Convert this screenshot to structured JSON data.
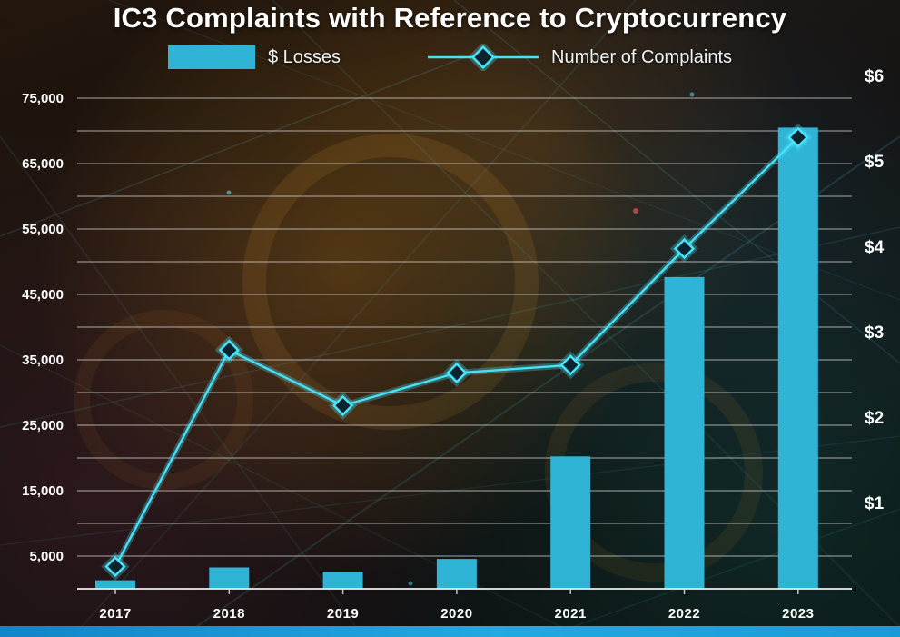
{
  "title": "IC3 Complaints with Reference to Cryptocurrency",
  "legend": {
    "losses_label": "$ Losses",
    "complaints_label": "Number of Complaints"
  },
  "chart_data": {
    "type": "combo-bar-line",
    "title": "IC3 Complaints with Reference to Cryptocurrency",
    "categories": [
      "2017",
      "2018",
      "2019",
      "2020",
      "2021",
      "2022",
      "2023"
    ],
    "series": [
      {
        "name": "$ Losses",
        "type": "bar",
        "axis": "right",
        "unit": "USD billions",
        "values": [
          0.1,
          0.25,
          0.2,
          0.35,
          1.55,
          3.65,
          5.4
        ]
      },
      {
        "name": "Number of Complaints",
        "type": "line",
        "axis": "left",
        "values": [
          3400,
          36500,
          28000,
          33000,
          34200,
          52000,
          69000
        ]
      }
    ],
    "left_axis": {
      "tick_labels": [
        "75,000",
        "65,000",
        "55,000",
        "45,000",
        "35,000",
        "25,000",
        "15,000",
        "5,000"
      ],
      "tick_values": [
        75000,
        65000,
        55000,
        45000,
        35000,
        25000,
        15000,
        5000
      ],
      "min": 0,
      "max": 75000,
      "gridline_step": 5000,
      "grid": true
    },
    "right_axis": {
      "tick_labels": [
        "$6",
        "$5",
        "$4",
        "$3",
        "$2",
        "$1"
      ],
      "tick_values": [
        6,
        5,
        4,
        3,
        2,
        1
      ],
      "min": 0,
      "max": 6
    },
    "legend_position": "top",
    "colors": {
      "bar": "#2fb4d6",
      "line": "#47e2f7",
      "line_glow": "#47e2f7",
      "marker_fill": "#0c2330",
      "marker_stroke": "#49e4f8",
      "grid": "#d9d9d9",
      "axis_text": "#ffffff",
      "baseline": "#e8e8e8"
    }
  }
}
